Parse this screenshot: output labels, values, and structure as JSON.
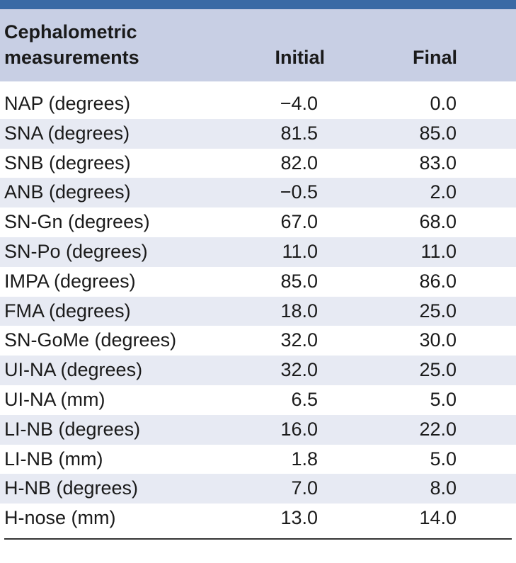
{
  "table": {
    "header": {
      "label": "Cephalometric measurements",
      "initial": "Initial",
      "final": "Final"
    },
    "rows": [
      {
        "label": "NAP (degrees)",
        "initial": "−4.0",
        "final": "0.0"
      },
      {
        "label": "SNA (degrees)",
        "initial": "81.5",
        "final": "85.0"
      },
      {
        "label": "SNB (degrees)",
        "initial": "82.0",
        "final": "83.0"
      },
      {
        "label": "ANB (degrees)",
        "initial": "−0.5",
        "final": "2.0"
      },
      {
        "label": "SN-Gn (degrees)",
        "initial": "67.0",
        "final": "68.0"
      },
      {
        "label": "SN-Po (degrees)",
        "initial": "11.0",
        "final": "11.0"
      },
      {
        "label": "IMPA (degrees)",
        "initial": "85.0",
        "final": "86.0"
      },
      {
        "label": "FMA (degrees)",
        "initial": "18.0",
        "final": "25.0"
      },
      {
        "label": "SN-GoMe (degrees)",
        "initial": "32.0",
        "final": "30.0"
      },
      {
        "label": "UI-NA (degrees)",
        "initial": "32.0",
        "final": "25.0"
      },
      {
        "label": "UI-NA (mm)",
        "initial": "6.5",
        "final": "5.0"
      },
      {
        "label": "LI-NB (degrees)",
        "initial": "16.0",
        "final": "22.0"
      },
      {
        "label": "LI-NB (mm)",
        "initial": "1.8",
        "final": "5.0"
      },
      {
        "label": "H-NB (degrees)",
        "initial": "7.0",
        "final": "8.0"
      },
      {
        "label": "H-nose (mm)",
        "initial": "13.0",
        "final": "14.0"
      }
    ]
  },
  "colors": {
    "top_rule": "#3a6aa5",
    "header_bg": "#c8cfe4",
    "row_shade": "#e7eaf3"
  }
}
